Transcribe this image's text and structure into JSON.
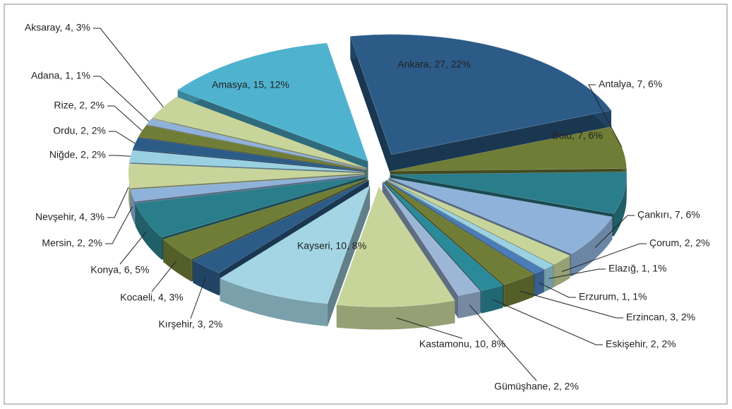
{
  "chart_data": {
    "type": "pie",
    "categories": [
      "Ankara",
      "Antalya",
      "Bolu",
      "Çankırı",
      "Çorum",
      "Elazığ",
      "Erzurum",
      "Erzincan",
      "Eskişehir",
      "Gümüşhane",
      "Kastamonu",
      "Kayseri",
      "Kırşehir",
      "Kocaeli",
      "Konya",
      "Mersin",
      "Nevşehir",
      "Niğde",
      "Ordu",
      "Rize",
      "Adana",
      "Aksaray",
      "Amasya"
    ],
    "values": [
      27,
      7,
      7,
      7,
      2,
      1,
      1,
      3,
      2,
      2,
      10,
      10,
      3,
      4,
      6,
      2,
      4,
      2,
      2,
      2,
      1,
      4,
      15
    ],
    "value_labels": [
      "Ankara, 27, 22%",
      "Antalya, 7, 6%",
      "Bolu, 7, 6%",
      "Çankırı, 7, 6%",
      "Çorum, 2, 2%",
      "Elazığ, 1, 1%",
      "Erzurum, 1, 1%",
      "Erzincan, 3, 2%",
      "Eskişehir, 2, 2%",
      "Gümüşhane, 2, 2%",
      "Kastamonu, 10, 8%",
      "Kayseri, 10, 8%",
      "Kırşehir, 3, 2%",
      "Kocaeli, 4, 3%",
      "Konya, 6, 5%",
      "Mersin, 2, 2%",
      "Nevşehir, 4, 3%",
      "Niğde, 2, 2%",
      "Ordu, 2, 2%",
      "Rize, 2, 2%",
      "Adana, 1, 1%",
      "Aksaray, 4, 3%",
      "Amasya, 15, 12%"
    ],
    "colors": [
      "#2c5b87",
      "#6f7d36",
      "#2a7d8b",
      "#8fb2da",
      "#c8d59a",
      "#9ad1e2",
      "#4a7db7",
      "#6f7d36",
      "#2a8a9a",
      "#9cb6d6",
      "#c7d59a",
      "#a3d5e4",
      "#2c5b87",
      "#6f7d36",
      "#2a7d8b",
      "#8fb2da",
      "#c8d59a",
      "#9ad1e2",
      "#2c5b87",
      "#6f7d36",
      "#8fb2da",
      "#c8d59a",
      "#4fb3cf"
    ]
  }
}
